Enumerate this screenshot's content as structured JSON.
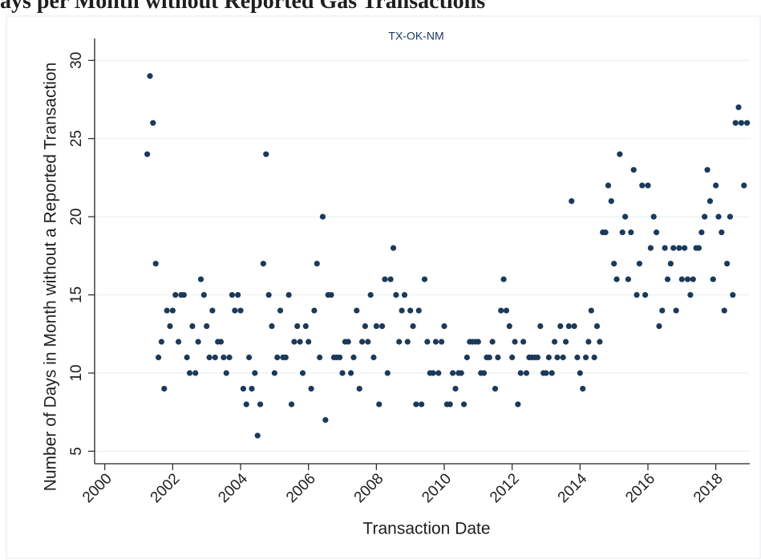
{
  "chart_data": {
    "type": "scatter",
    "title": "ays per Month without Reported Gas Transactions",
    "subtitle": "TX-OK-NM",
    "x_label": "Transaction Date",
    "y_label": "Number of Days in Month without a Reported Transaction",
    "color": "#1a3a5c",
    "grid": true,
    "xlim": [
      1999.7,
      2019
    ],
    "ylim": [
      4.2,
      31.4
    ],
    "xticks": [
      2000,
      2002,
      2004,
      2006,
      2008,
      2010,
      2012,
      2014,
      2016,
      2018
    ],
    "yticks": [
      5,
      10,
      15,
      20,
      25,
      30
    ],
    "x": [
      2001.25,
      2001.33,
      2001.42,
      2001.5,
      2001.58,
      2001.67,
      2001.75,
      2001.83,
      2001.92,
      2002,
      2002.08,
      2002.17,
      2002.25,
      2002.33,
      2002.42,
      2002.5,
      2002.58,
      2002.67,
      2002.75,
      2002.83,
      2002.92,
      2003,
      2003.08,
      2003.17,
      2003.25,
      2003.33,
      2003.42,
      2003.5,
      2003.58,
      2003.67,
      2003.75,
      2003.83,
      2003.92,
      2004,
      2004.08,
      2004.17,
      2004.25,
      2004.33,
      2004.42,
      2004.5,
      2004.58,
      2004.67,
      2004.75,
      2004.83,
      2004.92,
      2005,
      2005.08,
      2005.17,
      2005.25,
      2005.33,
      2005.42,
      2005.5,
      2005.58,
      2005.67,
      2005.75,
      2005.83,
      2005.92,
      2006,
      2006.08,
      2006.17,
      2006.25,
      2006.33,
      2006.42,
      2006.5,
      2006.58,
      2006.67,
      2006.75,
      2006.83,
      2006.92,
      2007,
      2007.08,
      2007.17,
      2007.25,
      2007.33,
      2007.42,
      2007.5,
      2007.58,
      2007.67,
      2007.75,
      2007.83,
      2007.92,
      2008,
      2008.08,
      2008.17,
      2008.25,
      2008.33,
      2008.42,
      2008.5,
      2008.58,
      2008.67,
      2008.75,
      2008.83,
      2008.92,
      2009,
      2009.08,
      2009.17,
      2009.25,
      2009.33,
      2009.42,
      2009.5,
      2009.58,
      2009.67,
      2009.75,
      2009.83,
      2009.92,
      2010,
      2010.08,
      2010.17,
      2010.25,
      2010.33,
      2010.42,
      2010.5,
      2010.58,
      2010.67,
      2010.75,
      2010.83,
      2010.92,
      2011,
      2011.08,
      2011.17,
      2011.25,
      2011.33,
      2011.42,
      2011.5,
      2011.58,
      2011.67,
      2011.75,
      2011.83,
      2011.92,
      2012,
      2012.08,
      2012.17,
      2012.25,
      2012.33,
      2012.42,
      2012.5,
      2012.58,
      2012.67,
      2012.75,
      2012.83,
      2012.92,
      2013,
      2013.08,
      2013.17,
      2013.25,
      2013.33,
      2013.42,
      2013.5,
      2013.58,
      2013.67,
      2013.75,
      2013.83,
      2013.92,
      2014,
      2014.08,
      2014.17,
      2014.25,
      2014.33,
      2014.42,
      2014.5,
      2014.58,
      2014.67,
      2014.75,
      2014.83,
      2014.92,
      2015,
      2015.08,
      2015.17,
      2015.25,
      2015.33,
      2015.42,
      2015.5,
      2015.58,
      2015.67,
      2015.75,
      2015.83,
      2015.92,
      2016,
      2016.08,
      2016.17,
      2016.25,
      2016.33,
      2016.42,
      2016.5,
      2016.58,
      2016.67,
      2016.75,
      2016.83,
      2016.92,
      2017,
      2017.08,
      2017.17,
      2017.25,
      2017.33,
      2017.42,
      2017.5,
      2017.58,
      2017.67,
      2017.75,
      2017.83,
      2017.92,
      2018,
      2018.08,
      2018.17,
      2018.25,
      2018.33,
      2018.42,
      2018.5,
      2018.58,
      2018.67,
      2018.75,
      2018.83,
      2018.92
    ],
    "values": [
      24,
      29,
      26,
      17,
      11,
      12,
      9,
      14,
      13,
      14,
      15,
      12,
      15,
      15,
      11,
      10,
      13,
      10,
      12,
      16,
      15,
      13,
      11,
      14,
      11,
      12,
      12,
      11,
      10,
      11,
      15,
      14,
      15,
      14,
      9,
      8,
      11,
      9,
      10,
      6,
      8,
      17,
      24,
      15,
      13,
      10,
      11,
      14,
      11,
      11,
      15,
      8,
      12,
      13,
      12,
      10,
      13,
      12,
      9,
      14,
      17,
      11,
      20,
      7,
      15,
      15,
      11,
      11,
      11,
      10,
      12,
      12,
      10,
      11,
      14,
      9,
      12,
      13,
      12,
      15,
      11,
      13,
      8,
      13,
      16,
      10,
      16,
      18,
      15,
      12,
      14,
      15,
      12,
      14,
      13,
      8,
      14,
      8,
      16,
      12,
      10,
      10,
      12,
      10,
      12,
      13,
      8,
      8,
      10,
      9,
      10,
      10,
      8,
      11,
      12,
      12,
      12,
      12,
      10,
      10,
      11,
      11,
      12,
      9,
      11,
      14,
      16,
      14,
      13,
      11,
      12,
      8,
      10,
      12,
      10,
      11,
      11,
      11,
      11,
      13,
      10,
      10,
      11,
      10,
      12,
      11,
      13,
      11,
      12,
      13,
      21,
      13,
      11,
      10,
      9,
      11,
      12,
      14,
      11,
      13,
      12,
      19,
      19,
      22,
      21,
      17,
      16,
      24,
      19,
      20,
      16,
      19,
      23,
      15,
      17,
      22,
      15,
      22,
      18,
      20,
      19,
      13,
      14,
      18,
      16,
      17,
      18,
      14,
      18,
      16,
      18,
      16,
      15,
      16,
      18,
      18,
      19,
      20,
      23,
      21,
      16,
      22,
      20,
      19,
      14,
      17,
      20,
      15,
      26,
      27,
      26,
      22,
      26
    ]
  }
}
